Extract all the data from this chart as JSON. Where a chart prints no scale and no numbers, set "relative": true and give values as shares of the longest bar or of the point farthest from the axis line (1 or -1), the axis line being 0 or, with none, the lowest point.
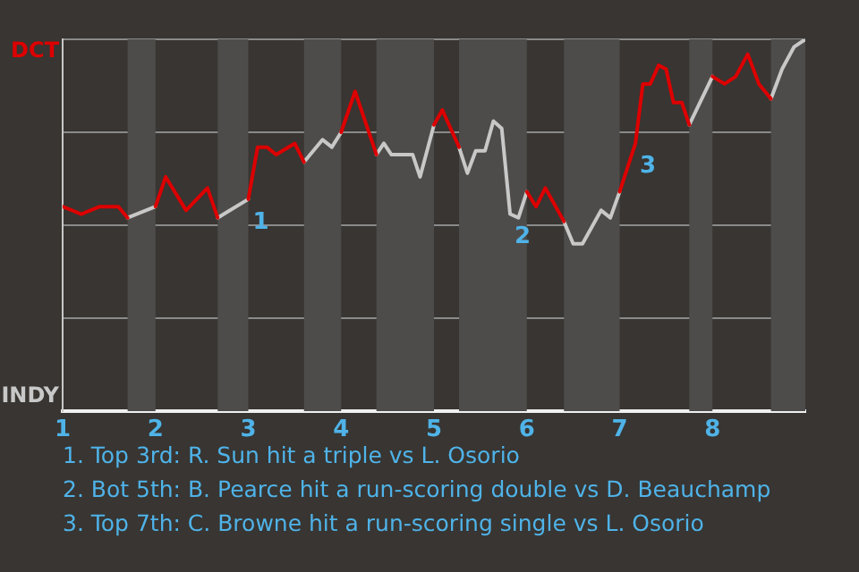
{
  "chart_data": {
    "type": "line",
    "relative": true,
    "x": [
      1,
      1.2,
      1.4,
      1.6,
      1.7,
      2,
      2.11,
      2.33,
      2.56,
      2.67,
      3,
      3.1,
      3.2,
      3.3,
      3.5,
      3.6,
      3.8,
      3.9,
      4,
      4.15,
      4.38,
      4.46,
      4.54,
      4.77,
      4.85,
      5,
      5.09,
      5.27,
      5.36,
      5.45,
      5.55,
      5.64,
      5.73,
      5.82,
      5.91,
      6,
      6.1,
      6.2,
      6.4,
      6.5,
      6.6,
      6.8,
      6.9,
      7,
      7.17,
      7.25,
      7.33,
      7.42,
      7.5,
      7.58,
      7.67,
      7.75,
      8,
      8.13,
      8.25,
      8.38,
      8.5,
      8.63,
      8.75,
      8.88,
      9
    ],
    "xlim": [
      1,
      9
    ],
    "xticks": [
      1,
      2,
      3,
      4,
      5,
      6,
      7,
      8
    ],
    "grid": "y",
    "legend": false,
    "marker": "none",
    "line_style": "solid",
    "bands": [
      {
        "axis": "x",
        "from": 1.7,
        "to": 2,
        "color": "#4e4c4a"
      },
      {
        "axis": "x",
        "from": 2.67,
        "to": 3,
        "color": "#4e4c4a"
      },
      {
        "axis": "x",
        "from": 3.6,
        "to": 4,
        "color": "#4e4c4a"
      },
      {
        "axis": "x",
        "from": 4.38,
        "to": 5,
        "color": "#4e4c4a"
      },
      {
        "axis": "x",
        "from": 5.27,
        "to": 6,
        "color": "#4e4c4a"
      },
      {
        "axis": "x",
        "from": 6.4,
        "to": 7,
        "color": "#4e4c4a"
      },
      {
        "axis": "x",
        "from": 7.75,
        "to": 8,
        "color": "#4e4c4a"
      },
      {
        "axis": "x",
        "from": 8.63,
        "to": 9,
        "color": "#4e4c4a"
      }
    ],
    "series": [
      {
        "color": "#dd0000",
        "values": [
          0.55,
          0.53,
          0.55,
          0.55,
          0.52,
          0.55,
          0.63,
          0.54,
          0.6,
          0.52,
          0.57,
          0.71,
          0.71,
          0.69,
          0.72,
          0.67,
          null,
          null,
          0.75,
          0.86,
          0.69,
          null,
          null,
          null,
          null,
          0.77,
          0.81,
          0.71,
          null,
          null,
          null,
          null,
          null,
          null,
          null,
          0.59,
          0.55,
          0.6,
          0.51,
          null,
          null,
          null,
          null,
          0.59,
          0.72,
          0.88,
          0.88,
          0.93,
          0.92,
          0.83,
          0.83,
          0.77,
          0.9,
          0.88,
          0.9,
          0.96,
          0.88,
          0.84,
          null,
          null,
          null
        ]
      },
      {
        "color": "#c8c8c8",
        "values": [
          null,
          null,
          null,
          null,
          0.52,
          0.55,
          null,
          null,
          null,
          0.52,
          0.57,
          null,
          null,
          null,
          null,
          0.67,
          0.73,
          0.71,
          0.75,
          null,
          0.69,
          0.72,
          0.69,
          0.69,
          0.63,
          0.77,
          null,
          0.71,
          0.64,
          0.7,
          0.7,
          0.78,
          0.76,
          0.53,
          0.52,
          0.59,
          null,
          null,
          0.51,
          0.45,
          0.45,
          0.54,
          0.52,
          0.59,
          null,
          null,
          null,
          null,
          null,
          null,
          null,
          0.77,
          0.9,
          null,
          null,
          null,
          null,
          0.84,
          0.92,
          0.98,
          1
        ]
      }
    ],
    "annotations": [
      "DCT",
      "INDY",
      {
        "text": "1",
        "x": 3,
        "y": 0.57
      },
      {
        "text": "2",
        "x": 5.82,
        "y": 0.53
      },
      {
        "text": "3",
        "x": 7.17,
        "y": 0.72
      },
      "1. Top 3rd: R. Sun hit a triple vs L. Osorio",
      "2. Bot 5th: B. Pearce hit a run-scoring double vs D. Beauchamp",
      "3. Top 7th: C. Browne hit a run-scoring single vs L. Osorio"
    ]
  }
}
